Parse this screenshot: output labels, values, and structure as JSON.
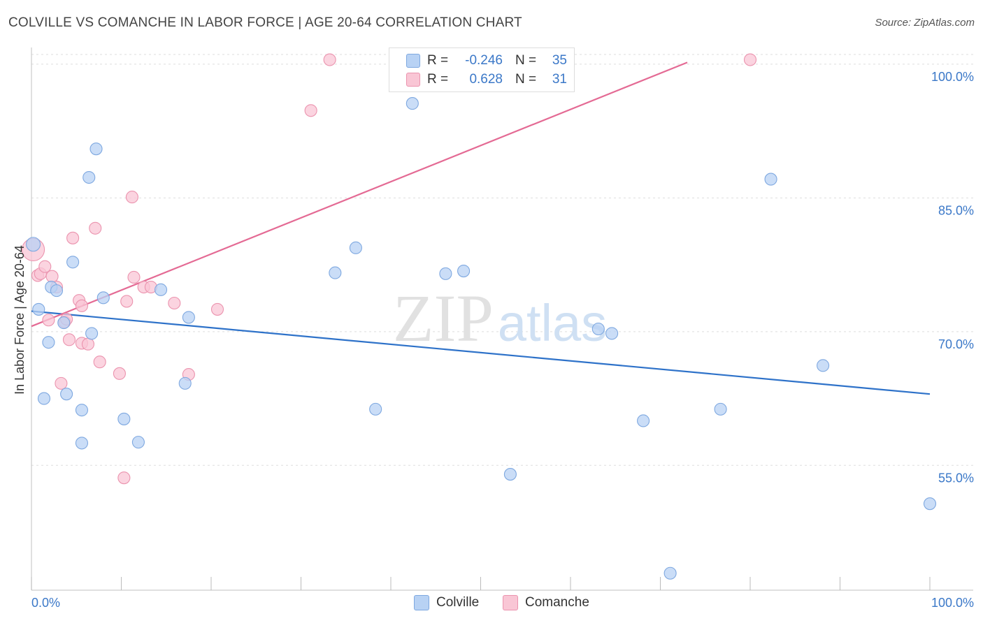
{
  "title": "COLVILLE VS COMANCHE IN LABOR FORCE | AGE 20-64 CORRELATION CHART",
  "source": "Source: ZipAtlas.com",
  "watermark": {
    "zip": "ZIP",
    "atlas": "atlas"
  },
  "colors": {
    "colville_fill": "#b8d2f4",
    "colville_stroke": "#7ea8e0",
    "colville_line": "#2e72c9",
    "comanche_fill": "#f9c6d5",
    "comanche_stroke": "#eb93ae",
    "comanche_line": "#e46a94",
    "accent_text": "#3b78c8"
  },
  "legend": {
    "rows": [
      {
        "r_label": "R =",
        "r_value": "-0.246",
        "n_label": "N =",
        "n_value": "35"
      },
      {
        "r_label": "R =",
        "r_value": "0.628",
        "n_label": "N =",
        "n_value": "31"
      }
    ]
  },
  "bottom_legend": {
    "colville": "Colville",
    "comanche": "Comanche"
  },
  "chart_data": {
    "type": "scatter",
    "title": "COLVILLE VS COMANCHE IN LABOR FORCE | AGE 20-64 CORRELATION CHART",
    "xlabel": "",
    "ylabel": "In Labor Force | Age 20-64",
    "xlim": [
      0,
      100
    ],
    "ylim": [
      41,
      102.5
    ],
    "x_tick_labels": [
      "0.0%",
      "100.0%"
    ],
    "y_ticks": [
      55,
      70,
      85,
      100
    ],
    "y_tick_labels": [
      "55.0%",
      "70.0%",
      "85.0%",
      "100.0%"
    ],
    "series": [
      {
        "name": "Colville",
        "r": -0.246,
        "n": 35,
        "trend": {
          "x0": 0,
          "y0": 72.3,
          "x1": 100,
          "y1": 63.0
        },
        "points": [
          {
            "x": 0.2,
            "y": 79.8
          },
          {
            "x": 0.8,
            "y": 72.5
          },
          {
            "x": 1.4,
            "y": 62.5
          },
          {
            "x": 1.9,
            "y": 68.8
          },
          {
            "x": 2.2,
            "y": 75.0
          },
          {
            "x": 2.8,
            "y": 74.6
          },
          {
            "x": 3.6,
            "y": 71.0
          },
          {
            "x": 3.9,
            "y": 63.0
          },
          {
            "x": 4.6,
            "y": 77.8
          },
          {
            "x": 5.6,
            "y": 61.2
          },
          {
            "x": 5.6,
            "y": 57.5
          },
          {
            "x": 6.4,
            "y": 87.3
          },
          {
            "x": 6.7,
            "y": 69.8
          },
          {
            "x": 7.2,
            "y": 90.5
          },
          {
            "x": 8.0,
            "y": 73.8
          },
          {
            "x": 10.3,
            "y": 60.2
          },
          {
            "x": 11.9,
            "y": 57.6
          },
          {
            "x": 14.4,
            "y": 74.7
          },
          {
            "x": 17.1,
            "y": 64.2
          },
          {
            "x": 17.5,
            "y": 71.6
          },
          {
            "x": 33.8,
            "y": 76.6
          },
          {
            "x": 36.1,
            "y": 79.4
          },
          {
            "x": 38.3,
            "y": 61.3
          },
          {
            "x": 42.4,
            "y": 95.6
          },
          {
            "x": 46.1,
            "y": 76.5
          },
          {
            "x": 48.1,
            "y": 76.8
          },
          {
            "x": 53.3,
            "y": 54.0
          },
          {
            "x": 63.1,
            "y": 70.3
          },
          {
            "x": 64.6,
            "y": 69.8
          },
          {
            "x": 68.1,
            "y": 60.0
          },
          {
            "x": 71.1,
            "y": 42.9
          },
          {
            "x": 76.7,
            "y": 61.3
          },
          {
            "x": 82.3,
            "y": 87.1
          },
          {
            "x": 88.1,
            "y": 66.2
          },
          {
            "x": 100.0,
            "y": 50.7
          }
        ]
      },
      {
        "name": "Comanche",
        "r": 0.628,
        "n": 31,
        "trend": {
          "x0": 0,
          "y0": 70.6,
          "x1": 73,
          "y1": 100.2
        },
        "points": [
          {
            "x": 0.2,
            "y": 79.2
          },
          {
            "x": 0.7,
            "y": 76.3
          },
          {
            "x": 1.0,
            "y": 76.5
          },
          {
            "x": 1.5,
            "y": 77.3
          },
          {
            "x": 1.9,
            "y": 71.3
          },
          {
            "x": 2.3,
            "y": 76.2
          },
          {
            "x": 2.8,
            "y": 75.0
          },
          {
            "x": 3.3,
            "y": 64.2
          },
          {
            "x": 3.7,
            "y": 71.1
          },
          {
            "x": 3.9,
            "y": 71.4
          },
          {
            "x": 4.2,
            "y": 69.1
          },
          {
            "x": 4.6,
            "y": 80.5
          },
          {
            "x": 5.3,
            "y": 73.5
          },
          {
            "x": 5.6,
            "y": 72.9
          },
          {
            "x": 5.6,
            "y": 68.7
          },
          {
            "x": 6.3,
            "y": 68.6
          },
          {
            "x": 7.1,
            "y": 81.6
          },
          {
            "x": 7.6,
            "y": 66.6
          },
          {
            "x": 9.8,
            "y": 65.3
          },
          {
            "x": 10.3,
            "y": 53.6
          },
          {
            "x": 10.6,
            "y": 73.4
          },
          {
            "x": 11.2,
            "y": 85.1
          },
          {
            "x": 11.4,
            "y": 76.1
          },
          {
            "x": 12.5,
            "y": 75.0
          },
          {
            "x": 13.3,
            "y": 75.0
          },
          {
            "x": 15.9,
            "y": 73.2
          },
          {
            "x": 17.5,
            "y": 65.2
          },
          {
            "x": 20.7,
            "y": 72.5
          },
          {
            "x": 31.1,
            "y": 94.8
          },
          {
            "x": 33.2,
            "y": 100.5
          },
          {
            "x": 80.0,
            "y": 100.5
          }
        ]
      }
    ]
  }
}
